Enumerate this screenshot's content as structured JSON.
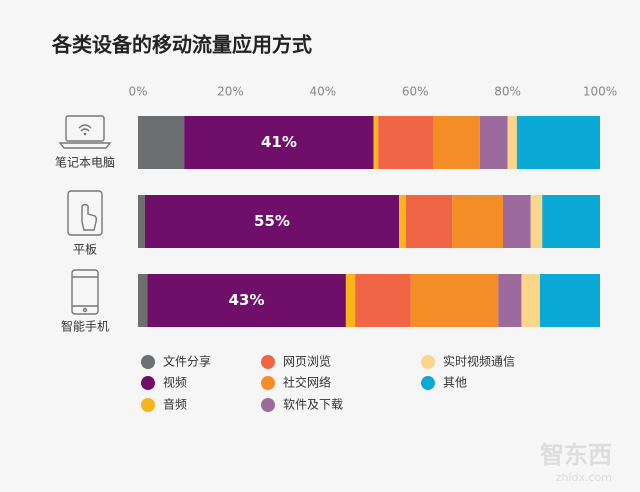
{
  "chart_data": {
    "type": "stacked-bar-horizontal",
    "title": "各类设备的移动流量应用方式",
    "categories": [
      "笔记本电脑",
      "平板",
      "智能手机"
    ],
    "xlim": [
      0,
      100
    ],
    "xticks": [
      {
        "value": 0,
        "label": "0%"
      },
      {
        "value": 20,
        "label": "20%"
      },
      {
        "value": 40,
        "label": "40%"
      },
      {
        "value": 60,
        "label": "60%"
      },
      {
        "value": 80,
        "label": "80%"
      },
      {
        "value": 100,
        "label": "100%"
      }
    ],
    "series": [
      {
        "name": "文件分享",
        "color": "#6d6e70",
        "values": [
          10,
          1.5,
          2
        ]
      },
      {
        "name": "视频",
        "color": "#6f0f6a",
        "values": [
          41,
          55,
          43
        ],
        "value_labels": [
          "41%",
          "55%",
          "43%"
        ]
      },
      {
        "name": "音频",
        "color": "#f7b51b",
        "values": [
          1,
          1.5,
          2
        ]
      },
      {
        "name": "网页浏览",
        "color": "#ef6545",
        "values": [
          12,
          10,
          12
        ]
      },
      {
        "name": "社交网络",
        "color": "#f48d25",
        "values": [
          10,
          11,
          19
        ]
      },
      {
        "name": "软件及下载",
        "color": "#9c6a9c",
        "values": [
          6,
          6,
          5
        ]
      },
      {
        "name": "实时视频通信",
        "color": "#fbd58a",
        "values": [
          2,
          2.5,
          4
        ]
      },
      {
        "name": "其他",
        "color": "#0aa9d6",
        "values": [
          18,
          12.5,
          13
        ]
      }
    ],
    "watermark": "智东西",
    "watermark_url": "zhidx.com"
  }
}
